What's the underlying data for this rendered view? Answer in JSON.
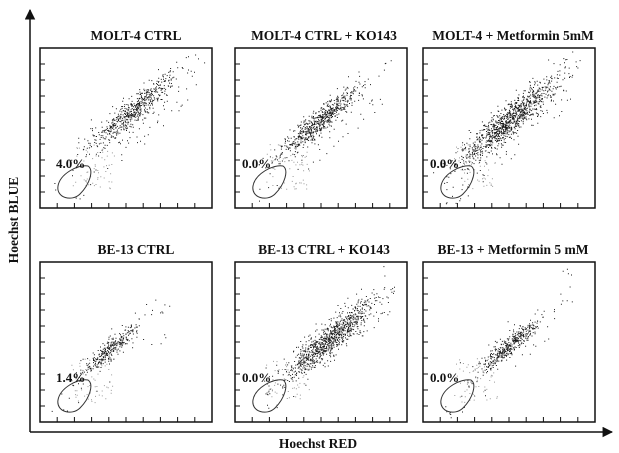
{
  "chart_data": {
    "type": "scatter",
    "xlabel": "Hoechst RED",
    "ylabel": "Hoechst BLUE",
    "grid": false,
    "legend": "none",
    "colors": {
      "points": "#1a1a1a",
      "faint_points": "#9a9a9a",
      "frame": "#111111",
      "gate": "#333333"
    },
    "panels": [
      {
        "title": "MOLT-4 CTRL",
        "gate_pct": "4.0%",
        "cluster": {
          "x": 0.55,
          "y": 0.62,
          "spread": 0.1,
          "density": 650
        }
      },
      {
        "title": "MOLT-4 CTRL + KO143",
        "gate_pct": "0.0%",
        "cluster": {
          "x": 0.5,
          "y": 0.55,
          "spread": 0.09,
          "density": 700
        }
      },
      {
        "title": "MOLT-4 + Metformin 5mM",
        "gate_pct": "0.0%",
        "cluster": {
          "x": 0.5,
          "y": 0.55,
          "spread": 0.11,
          "density": 1100
        }
      },
      {
        "title": "BE-13 CTRL",
        "gate_pct": "1.4%",
        "cluster": {
          "x": 0.4,
          "y": 0.45,
          "spread": 0.07,
          "density": 350
        }
      },
      {
        "title": "BE-13 CTRL + KO143",
        "gate_pct": "0.0%",
        "cluster": {
          "x": 0.55,
          "y": 0.52,
          "spread": 0.1,
          "density": 1000
        }
      },
      {
        "title": "BE-13 + Metformin 5 mM",
        "gate_pct": "0.0%",
        "cluster": {
          "x": 0.5,
          "y": 0.48,
          "spread": 0.07,
          "density": 450
        }
      }
    ]
  }
}
